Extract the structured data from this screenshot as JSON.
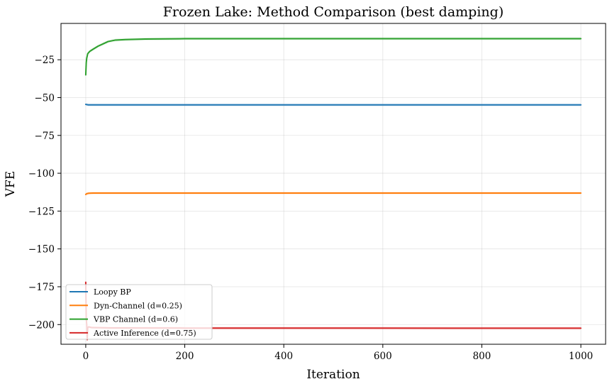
{
  "chart_data": {
    "type": "line",
    "title": "Frozen Lake: Method Comparison (best damping)",
    "xlabel": "Iteration",
    "ylabel": "VFE",
    "xlim": [
      -50,
      1050
    ],
    "ylim": [
      -213,
      -1
    ],
    "xticks": [
      0,
      200,
      400,
      600,
      800,
      1000
    ],
    "yticks": [
      -25,
      -50,
      -75,
      -100,
      -125,
      -150,
      -175,
      -200
    ],
    "grid": true,
    "legend_position": "lower-left",
    "series": [
      {
        "name": "Loopy BP",
        "color": "#1f77b4",
        "points": [
          [
            0,
            -54.5
          ],
          [
            5,
            -54.8
          ],
          [
            20,
            -54.8
          ],
          [
            1000,
            -54.8
          ]
        ]
      },
      {
        "name": "Dyn-Channel (d=0.25)",
        "color": "#ff7f0e",
        "points": [
          [
            0,
            -114
          ],
          [
            2,
            -113.5
          ],
          [
            6,
            -113.2
          ],
          [
            15,
            -113.1
          ],
          [
            1000,
            -113.1
          ]
        ]
      },
      {
        "name": "VBP Channel (d=0.6)",
        "color": "#2ca02c",
        "points": [
          [
            0,
            -35
          ],
          [
            1,
            -27
          ],
          [
            2,
            -24
          ],
          [
            4,
            -21
          ],
          [
            8,
            -19.5
          ],
          [
            15,
            -18
          ],
          [
            25,
            -16
          ],
          [
            35,
            -14.5
          ],
          [
            45,
            -13
          ],
          [
            60,
            -12
          ],
          [
            80,
            -11.7
          ],
          [
            120,
            -11.3
          ],
          [
            200,
            -11.1
          ],
          [
            1000,
            -11.1
          ]
        ]
      },
      {
        "name": "Active Inference (d=0.75)",
        "color": "#d62728",
        "points": [
          [
            0,
            -172
          ],
          [
            1,
            -196
          ],
          [
            2,
            -200
          ],
          [
            3,
            -210
          ],
          [
            4,
            -202
          ],
          [
            6,
            -201.5
          ],
          [
            12,
            -202
          ],
          [
            50,
            -202.2
          ],
          [
            200,
            -202.3
          ],
          [
            1000,
            -202.4
          ]
        ]
      }
    ]
  }
}
